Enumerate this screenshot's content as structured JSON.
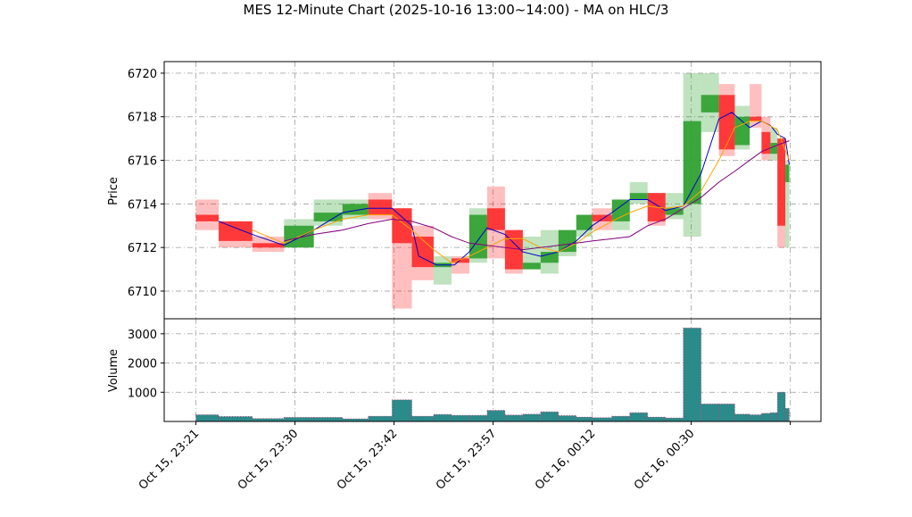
{
  "chart_data": [
    {
      "type": "candlestick",
      "title": "MES 12-Minute Chart (2025-10-16 13:00~14:00) - MA on HLC/3",
      "ylabel": "Price",
      "xlim": [
        -3.2,
        63.1
      ],
      "ylim": [
        6708.73,
        6720.53
      ],
      "yticks": [
        6710,
        6712,
        6714,
        6716,
        6718,
        6720
      ],
      "grid": true,
      "up_color": "#2ca02c",
      "down_color": "#ff2a2a",
      "x": [
        0,
        2.3,
        5.7,
        8.9,
        11.9,
        14.8,
        17.4,
        19.8,
        21.8,
        24.0,
        25.8,
        27.6,
        29.4,
        31.2,
        33.0,
        34.8,
        36.6,
        38.4,
        40.0,
        42.0,
        43.8,
        45.6,
        47.4,
        49.2,
        51.0,
        52.8,
        54.4,
        55.9,
        57.1,
        58.0,
        58.7,
        59.5
      ],
      "x_end": [
        2.3,
        5.7,
        8.9,
        11.9,
        14.8,
        17.4,
        19.8,
        21.8,
        24.0,
        25.8,
        27.6,
        29.4,
        31.2,
        33.0,
        34.8,
        36.6,
        38.4,
        40.0,
        42.0,
        43.8,
        45.6,
        47.4,
        49.2,
        51.0,
        52.8,
        54.4,
        55.9,
        57.1,
        58.0,
        58.7,
        59.5,
        59.9
      ],
      "open": [
        6713.5,
        6713.2,
        6712.2,
        6712.0,
        6713.2,
        6713.5,
        6714.2,
        6713.8,
        6712.5,
        6711.1,
        6711.5,
        6711.5,
        6713.8,
        6712.8,
        6711.0,
        6711.3,
        6711.8,
        6712.8,
        6713.5,
        6713.2,
        6714.2,
        6714.5,
        6713.5,
        6714.0,
        6718.2,
        6719.0,
        6716.7,
        6718.0,
        6717.3,
        6716.3,
        6717.0,
        6715.0
      ],
      "high": [
        6714.2,
        6713.2,
        6712.5,
        6713.3,
        6714.2,
        6714.2,
        6714.5,
        6713.8,
        6713.0,
        6711.6,
        6711.6,
        6713.8,
        6714.8,
        6712.8,
        6712.5,
        6712.8,
        6712.8,
        6713.5,
        6713.8,
        6714.2,
        6715.0,
        6714.5,
        6714.5,
        6720.0,
        6720.0,
        6719.5,
        6718.5,
        6719.5,
        6718.0,
        6717.5,
        6717.0,
        6716.0
      ],
      "low": [
        6712.8,
        6712.0,
        6711.8,
        6712.0,
        6713.0,
        6713.3,
        6713.3,
        6709.2,
        6710.5,
        6710.3,
        6710.8,
        6711.3,
        6711.5,
        6710.8,
        6711.0,
        6710.8,
        6711.6,
        6712.5,
        6712.8,
        6712.8,
        6714.0,
        6713.0,
        6713.3,
        6712.5,
        6717.3,
        6716.2,
        6716.5,
        6717.5,
        6716.0,
        6716.0,
        6712.0,
        6712.0
      ],
      "close": [
        6713.2,
        6712.3,
        6712.0,
        6713.0,
        6713.6,
        6714.0,
        6713.5,
        6712.2,
        6711.1,
        6711.3,
        6711.3,
        6713.5,
        6712.8,
        6711.0,
        6711.3,
        6711.8,
        6712.8,
        6713.5,
        6713.2,
        6714.2,
        6714.5,
        6713.2,
        6713.8,
        6717.8,
        6719.0,
        6716.5,
        6718.0,
        6717.8,
        6716.3,
        6716.8,
        6713.0,
        6715.8
      ],
      "series": [
        {
          "color": "#0000cc",
          "x": [
            2.3,
            5.7,
            8.9,
            11.9,
            14.8,
            17.4,
            19.8,
            21.8,
            22.5,
            24.3,
            26.1,
            27.6,
            29.4,
            31.2,
            33.0,
            34.8,
            36.6,
            38.4,
            40.0,
            42.0,
            43.8,
            45.6,
            47.4,
            49.2,
            51.0,
            52.8,
            54.1,
            55.9,
            57.1,
            58.0,
            58.7,
            59.5,
            59.9
          ],
          "values": [
            6713.2,
            6712.6,
            6712.1,
            6712.8,
            6713.6,
            6713.8,
            6713.8,
            6713.0,
            6711.6,
            6711.2,
            6711.2,
            6711.8,
            6712.9,
            6712.6,
            6711.8,
            6711.6,
            6711.8,
            6712.3,
            6713.0,
            6713.6,
            6714.2,
            6714.2,
            6713.7,
            6713.9,
            6715.4,
            6717.9,
            6718.2,
            6717.5,
            6717.8,
            6717.6,
            6717.2,
            6717.0,
            6715.8
          ]
        },
        {
          "color": "#ffa500",
          "x": [
            5.7,
            8.9,
            11.9,
            14.8,
            17.4,
            19.8,
            21.8,
            24.0,
            25.8,
            27.6,
            29.4,
            31.2,
            33.0,
            34.8,
            36.6,
            38.4,
            40.0,
            42.0,
            43.8,
            45.6,
            47.4,
            49.2,
            51.0,
            52.8,
            54.4,
            55.9,
            57.1,
            58.7,
            59.9
          ],
          "values": [
            6712.8,
            6712.2,
            6712.8,
            6713.3,
            6713.5,
            6713.5,
            6712.8,
            6711.9,
            6711.3,
            6711.6,
            6712.0,
            6712.4,
            6712.4,
            6712.0,
            6711.8,
            6712.2,
            6712.7,
            6713.2,
            6713.6,
            6713.9,
            6713.8,
            6713.9,
            6714.6,
            6716.0,
            6717.5,
            6717.8,
            6717.8,
            6717.4,
            6716.0
          ]
        },
        {
          "color": "#800080",
          "x": [
            8.9,
            11.9,
            14.8,
            17.4,
            19.8,
            21.8,
            24.0,
            25.8,
            27.6,
            29.4,
            31.2,
            33.0,
            34.8,
            36.6,
            38.4,
            40.0,
            42.0,
            43.8,
            45.6,
            47.4,
            49.2,
            51.0,
            52.8,
            54.4,
            55.9,
            57.1,
            58.7,
            59.9
          ],
          "values": [
            6712.3,
            6712.6,
            6712.8,
            6713.1,
            6713.3,
            6713.2,
            6712.9,
            6712.5,
            6712.2,
            6712.1,
            6712.0,
            6711.9,
            6712.0,
            6712.1,
            6712.2,
            6712.3,
            6712.4,
            6712.5,
            6713.0,
            6713.3,
            6713.8,
            6714.3,
            6715.0,
            6715.5,
            6716.0,
            6716.4,
            6716.7,
            6716.9
          ]
        }
      ]
    },
    {
      "type": "bar",
      "ylabel": "Volume",
      "xlim": [
        -3.2,
        63.1
      ],
      "ylim": [
        0,
        3515
      ],
      "yticks": [
        1000,
        2000,
        3000
      ],
      "xticks": [
        {
          "value": 0,
          "label": "Oct 15, 23:21"
        },
        {
          "value": 10,
          "label": "Oct 15, 23:30"
        },
        {
          "value": 20,
          "label": "Oct 15, 23:42"
        },
        {
          "value": 30,
          "label": "Oct 15, 23:57"
        },
        {
          "value": 40,
          "label": "Oct 16, 00:12"
        },
        {
          "value": 50,
          "label": "Oct 16, 00:30"
        },
        {
          "value": 60,
          "label": null
        }
      ],
      "grid": true,
      "color": "#2b8a8a",
      "edge_color": "#c0306a",
      "values": [
        230,
        170,
        100,
        140,
        140,
        90,
        180,
        740,
        180,
        240,
        210,
        210,
        380,
        220,
        250,
        330,
        200,
        150,
        130,
        180,
        300,
        150,
        120,
        3200,
        600,
        600,
        250,
        230,
        280,
        300,
        1000,
        450
      ]
    }
  ]
}
